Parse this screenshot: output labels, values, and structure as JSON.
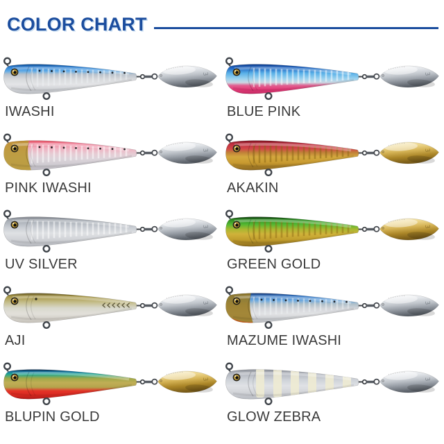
{
  "header": {
    "title": "COLOR CHART",
    "accent_color": "#1b4d9e"
  },
  "shared": {
    "blade_mark": "3",
    "blade_mark_colors": {
      "silver": "rgba(90,96,104,0.55)",
      "gold": "rgba(110,85,25,0.55)"
    },
    "blade_gradients": {
      "silver": [
        [
          "0%",
          "#ffffff"
        ],
        [
          "28%",
          "#e3e6ea"
        ],
        [
          "52%",
          "#bfc4ca"
        ],
        [
          "72%",
          "#969ca4"
        ],
        [
          "100%",
          "#5b6169"
        ]
      ],
      "gold": [
        [
          "0%",
          "#f8eec6"
        ],
        [
          "28%",
          "#ecd488"
        ],
        [
          "50%",
          "#d4b254"
        ],
        [
          "74%",
          "#ab8628"
        ],
        [
          "100%",
          "#7a5c18"
        ]
      ]
    },
    "parts": [
      "body",
      "eye",
      "nose-eyelet",
      "belly-eyelet",
      "swivel",
      "blade"
    ]
  },
  "lures": [
    {
      "label": "IWASHI",
      "blade": "silver",
      "dots": true,
      "ribs": "#eef1f4",
      "body_stops": [
        [
          "0%",
          "#0e4d94"
        ],
        [
          "10%",
          "#2f7fd0"
        ],
        [
          "22%",
          "#59a8e8"
        ],
        [
          "34%",
          "#b9c2cb"
        ],
        [
          "50%",
          "#d7d9dc"
        ],
        [
          "68%",
          "#e4e5e7"
        ],
        [
          "85%",
          "#cfd1d5"
        ],
        [
          "100%",
          "#b9bcc1"
        ]
      ]
    },
    {
      "label": "BLUE PINK",
      "blade": "silver",
      "ribs": "#ffffff",
      "body_stops": [
        [
          "0%",
          "#123f8e"
        ],
        [
          "12%",
          "#1e63c0"
        ],
        [
          "30%",
          "#58b0e8"
        ],
        [
          "50%",
          "#9fd4ef"
        ],
        [
          "62%",
          "#cbd7e2"
        ],
        [
          "72%",
          "#e06090"
        ],
        [
          "85%",
          "#e43a78"
        ],
        [
          "100%",
          "#c22a62"
        ]
      ]
    },
    {
      "label": "PINK IWASHI",
      "blade": "silver",
      "dots": true,
      "ribs": "#ffffff",
      "head": [
        "#b8962f"
      ],
      "body_stops": [
        [
          "0%",
          "#e05060"
        ],
        [
          "10%",
          "#f08098"
        ],
        [
          "25%",
          "#f0aebe"
        ],
        [
          "45%",
          "#e6ccd4"
        ],
        [
          "62%",
          "#dcd4da"
        ],
        [
          "80%",
          "#d0ccd2"
        ],
        [
          "100%",
          "#bcb8c0"
        ]
      ]
    },
    {
      "label": "AKAKIN",
      "blade": "gold",
      "ribs": "#8a6614",
      "body_stops": [
        [
          "0%",
          "#7a1420"
        ],
        [
          "12%",
          "#c03040"
        ],
        [
          "28%",
          "#d24848"
        ],
        [
          "40%",
          "#c08038"
        ],
        [
          "55%",
          "#d4a83e"
        ],
        [
          "75%",
          "#c89a30"
        ],
        [
          "100%",
          "#8a661e"
        ]
      ]
    },
    {
      "label": "UV SILVER",
      "blade": "silver",
      "ribs": "#ffffff",
      "body_stops": [
        [
          "0%",
          "#83878f"
        ],
        [
          "15%",
          "#aab0b8"
        ],
        [
          "35%",
          "#c8ccd2"
        ],
        [
          "55%",
          "#dfe1e4"
        ],
        [
          "75%",
          "#d2d4d8"
        ],
        [
          "100%",
          "#b4b7bd"
        ]
      ]
    },
    {
      "label": "GREEN GOLD",
      "blade": "gold",
      "ribs": "#8f6f16",
      "body_stops": [
        [
          "0%",
          "#123c10"
        ],
        [
          "10%",
          "#2e8c22"
        ],
        [
          "25%",
          "#52b832"
        ],
        [
          "42%",
          "#a8b830"
        ],
        [
          "58%",
          "#d0b23a"
        ],
        [
          "78%",
          "#c09c2c"
        ],
        [
          "100%",
          "#8a6a1c"
        ]
      ]
    },
    {
      "label": "AJI",
      "blade": "silver",
      "chevrons": "#4a4428",
      "spot": [
        52,
        30
      ],
      "body_stops": [
        [
          "0%",
          "#6a5c28"
        ],
        [
          "12%",
          "#a89848"
        ],
        [
          "30%",
          "#c4bc88"
        ],
        [
          "50%",
          "#d8d8cc"
        ],
        [
          "70%",
          "#e2e0da"
        ],
        [
          "100%",
          "#c6c2ba"
        ]
      ]
    },
    {
      "label": "MAZUME IWASHI",
      "blade": "silver",
      "dots": true,
      "ribs": "#eef1f4",
      "head": [
        "#9a7a20",
        "#c85018"
      ],
      "body_stops": [
        [
          "0%",
          "#1c3c78"
        ],
        [
          "10%",
          "#3878c4"
        ],
        [
          "24%",
          "#6aa8e0"
        ],
        [
          "36%",
          "#aebfc9"
        ],
        [
          "52%",
          "#d4d6da"
        ],
        [
          "70%",
          "#e2e3e5"
        ],
        [
          "100%",
          "#b9bcc1"
        ]
      ]
    },
    {
      "label": "BLUPIN GOLD",
      "blade": "gold",
      "body_stops": [
        [
          "0%",
          "#0c2c50"
        ],
        [
          "8%",
          "#1878a0"
        ],
        [
          "16%",
          "#20a890"
        ],
        [
          "30%",
          "#a0a848"
        ],
        [
          "45%",
          "#c0ae56"
        ],
        [
          "60%",
          "#b4a44c"
        ],
        [
          "72%",
          "#e43428"
        ],
        [
          "88%",
          "#d82820"
        ],
        [
          "100%",
          "#aa1818"
        ]
      ]
    },
    {
      "label": "GLOW ZEBRA",
      "blade": "silver",
      "zebra": "#eeead2",
      "body_stops": [
        [
          "0%",
          "#8e929a"
        ],
        [
          "15%",
          "#b4b8c0"
        ],
        [
          "35%",
          "#ced2d8"
        ],
        [
          "55%",
          "#e0e2e6"
        ],
        [
          "75%",
          "#d4d6da"
        ],
        [
          "100%",
          "#b8bbc2"
        ]
      ]
    }
  ]
}
